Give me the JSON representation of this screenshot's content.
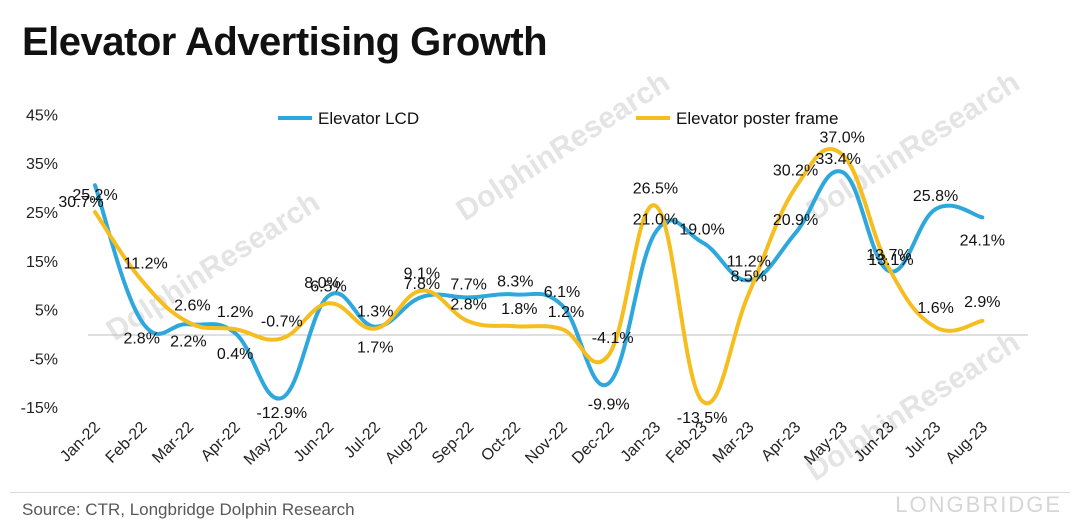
{
  "title": "Elevator Advertising Growth",
  "source": "Source: CTR, Longbridge Dolphin Research",
  "watermark": "DolphinResearch",
  "brand": "LONGBRIDGE",
  "chart_data": {
    "type": "line",
    "title": "Elevator Advertising Growth",
    "categories": [
      "Jan-22",
      "Feb-22",
      "Mar-22",
      "Apr-22",
      "May-22",
      "Jun-22",
      "Jul-22",
      "Aug-22",
      "Sep-22",
      "Oct-22",
      "Nov-22",
      "Dec-22",
      "Jan-23",
      "Feb-23",
      "Mar-23",
      "Apr-23",
      "May-23",
      "Jun-23",
      "Jul-23",
      "Aug-23"
    ],
    "series": [
      {
        "name": "Elevator LCD",
        "color": "#2ea8dc",
        "values": [
          30.7,
          2.8,
          2.2,
          0.4,
          -12.9,
          8.0,
          1.7,
          7.8,
          7.7,
          8.3,
          6.1,
          -9.9,
          21.0,
          19.0,
          11.2,
          20.9,
          33.4,
          13.1,
          25.8,
          24.1
        ],
        "labels": [
          "30.7%",
          "2.8%",
          "2.2%",
          "0.4%",
          "-12.9%",
          "8.0%",
          "1.7%",
          "7.8%",
          "7.7%",
          "8.3%",
          "6.1%",
          "-9.9%",
          "21.0%",
          "19.0%",
          "11.2%",
          "20.9%",
          "33.4%",
          "13.1%",
          "25.8%",
          "24.1%"
        ]
      },
      {
        "name": "Elevator poster frame",
        "color": "#f5be1e",
        "values": [
          25.2,
          11.2,
          2.6,
          1.2,
          -0.7,
          6.5,
          1.3,
          9.1,
          2.8,
          1.8,
          1.2,
          -4.1,
          26.5,
          -13.5,
          8.5,
          30.2,
          37.0,
          13.7,
          1.6,
          2.9
        ],
        "labels": [
          "25.2%",
          "11.2%",
          "2.6%",
          "1.2%",
          "-0.7%",
          "6.5%",
          "1.3%",
          "9.1%",
          "2.8%",
          "1.8%",
          "1.2%",
          "-4.1%",
          "26.5%",
          "-13.5%",
          "8.5%",
          "30.2%",
          "37.0%",
          "13.7%",
          "1.6%",
          "2.9%"
        ]
      }
    ],
    "yticks": [
      "45%",
      "35%",
      "25%",
      "15%",
      "5%",
      "-5%",
      "-15%"
    ],
    "ytick_values": [
      45,
      35,
      25,
      15,
      5,
      -5,
      -15
    ],
    "ylim": [
      -15,
      45
    ],
    "legend_position": "top",
    "grid": false
  }
}
